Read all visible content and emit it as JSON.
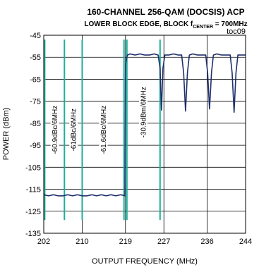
{
  "chart_data": {
    "type": "line",
    "title": "160-CHANNEL 256-QAM (DOCSIS) ACP",
    "subtitle_prefix": "LOWER BLOCK EDGE, BLOCK f",
    "subtitle_subscript": "CENTER",
    "subtitle_suffix": " = 700MHz",
    "figure_id": "toc09",
    "xlabel": "OUTPUT FREQUENCY (MHz)",
    "ylabel": "POWER (dBm)",
    "xlim": [
      202,
      244
    ],
    "ylim": [
      -135,
      -45
    ],
    "x_ticks": [
      202,
      210,
      219,
      227,
      236,
      244
    ],
    "y_ticks": [
      -45,
      -55,
      -65,
      -75,
      -85,
      -95,
      -105,
      -115,
      -125,
      -135
    ],
    "grid": true,
    "series": [
      {
        "color": "#1f2f6b",
        "points": [
          [
            202.0,
            -117.5
          ],
          [
            203.0,
            -118.0
          ],
          [
            204.0,
            -117.5
          ],
          [
            205.0,
            -118.0
          ],
          [
            206.0,
            -118.0
          ],
          [
            207.0,
            -117.5
          ],
          [
            208.0,
            -118.0
          ],
          [
            209.0,
            -117.5
          ],
          [
            210.0,
            -118.0
          ],
          [
            211.0,
            -118.0
          ],
          [
            212.0,
            -117.5
          ],
          [
            213.0,
            -118.0
          ],
          [
            214.0,
            -117.5
          ],
          [
            215.0,
            -118.0
          ],
          [
            216.0,
            -117.5
          ],
          [
            217.0,
            -118.0
          ],
          [
            218.0,
            -117.5
          ],
          [
            218.9,
            -118.0
          ],
          [
            219.0,
            -58.0
          ],
          [
            219.4,
            -54.0
          ],
          [
            220.0,
            -53.5
          ],
          [
            221.0,
            -54.0
          ],
          [
            222.0,
            -53.5
          ],
          [
            223.0,
            -54.0
          ],
          [
            224.0,
            -54.0
          ],
          [
            225.0,
            -53.5
          ],
          [
            225.8,
            -54.0
          ],
          [
            226.2,
            -60.0
          ],
          [
            226.5,
            -79.0
          ],
          [
            226.8,
            -60.0
          ],
          [
            227.2,
            -54.0
          ],
          [
            228.0,
            -54.0
          ],
          [
            229.0,
            -53.5
          ],
          [
            230.0,
            -54.0
          ],
          [
            230.7,
            -54.0
          ],
          [
            231.1,
            -62.0
          ],
          [
            231.5,
            -79.5
          ],
          [
            231.9,
            -62.0
          ],
          [
            232.3,
            -54.0
          ],
          [
            233.0,
            -53.5
          ],
          [
            234.0,
            -54.0
          ],
          [
            235.0,
            -54.0
          ],
          [
            235.7,
            -54.0
          ],
          [
            236.1,
            -62.0
          ],
          [
            236.5,
            -78.5
          ],
          [
            236.9,
            -62.0
          ],
          [
            237.3,
            -54.0
          ],
          [
            238.0,
            -53.5
          ],
          [
            239.0,
            -54.0
          ],
          [
            240.0,
            -54.0
          ],
          [
            240.8,
            -54.0
          ],
          [
            241.2,
            -62.0
          ],
          [
            241.6,
            -80.0
          ],
          [
            242.0,
            -62.0
          ],
          [
            242.4,
            -54.0
          ],
          [
            243.0,
            -54.0
          ],
          [
            244.0,
            -54.0
          ]
        ]
      }
    ],
    "markers": {
      "color": "#1fae9a",
      "x": [
        202.2,
        206.3,
        210.0,
        218.7,
        219.3,
        226.2
      ],
      "y_top": -47,
      "y_bottom": -129
    },
    "annotations": [
      {
        "text": "-60.9dBc/6MHz",
        "x": 204.3,
        "y": -88
      },
      {
        "text": "-61dBc/6MHz",
        "x": 208.2,
        "y": -88
      },
      {
        "text": "-61.6dBc/6MHz",
        "x": 214.4,
        "y": -88
      },
      {
        "text": "-30.9dBm/6MHz",
        "x": 222.7,
        "y": -80
      }
    ]
  }
}
